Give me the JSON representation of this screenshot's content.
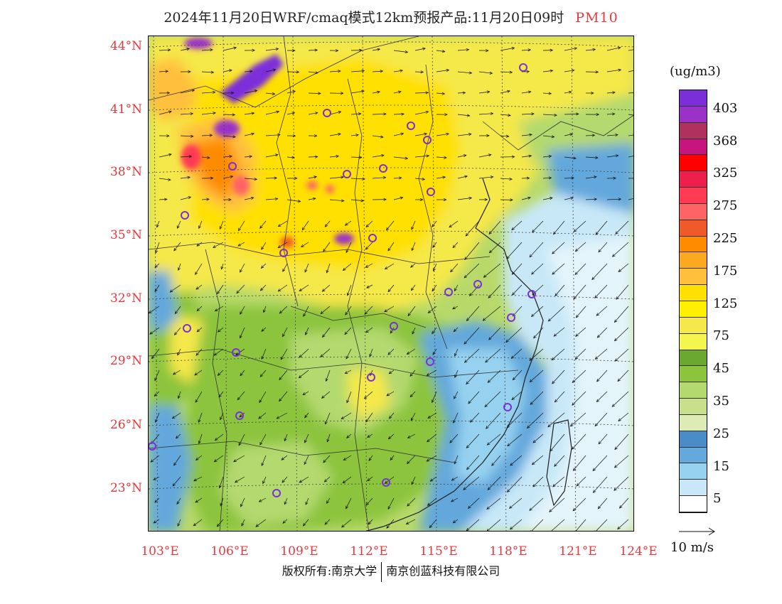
{
  "title": "2024年11月20日WRF/cmaq模式12km预报产品:11月20日09时",
  "variable": "PM10",
  "axes": {
    "lat_labels": [
      "44°N",
      "41°N",
      "38°N",
      "35°N",
      "32°N",
      "29°N",
      "26°N",
      "23°N"
    ],
    "lon_labels": [
      "103°E",
      "106°E",
      "109°E",
      "112°E",
      "115°E",
      "118°E",
      "121°E",
      "124°E"
    ]
  },
  "colorbar": {
    "unit": "(ug/m3)",
    "labels": [
      "403",
      "368",
      "325",
      "275",
      "225",
      "175",
      "125",
      "75",
      "45",
      "35",
      "25",
      "15",
      "5"
    ],
    "colors": [
      "#7b2fd9",
      "#9a32c8",
      "#b0305e",
      "#c8147d",
      "#ff0000",
      "#ef1f4d",
      "#ff3a52",
      "#ff6464",
      "#f05a28",
      "#ff8c00",
      "#fba91e",
      "#ffc03c",
      "#ffe000",
      "#fff000",
      "#f5e84a",
      "#f5f550",
      "#6aa832",
      "#8cc43c",
      "#b4d96e",
      "#c8e08c",
      "#dcecb4",
      "#4a8cc8",
      "#64a8dc",
      "#96d2f0",
      "#c8e8f8",
      "#ffffff"
    ]
  },
  "wind_reference": "10 m/s",
  "footer": {
    "copyright": "版权所有:南京大学",
    "company": "南京创蓝科技有限公司"
  }
}
